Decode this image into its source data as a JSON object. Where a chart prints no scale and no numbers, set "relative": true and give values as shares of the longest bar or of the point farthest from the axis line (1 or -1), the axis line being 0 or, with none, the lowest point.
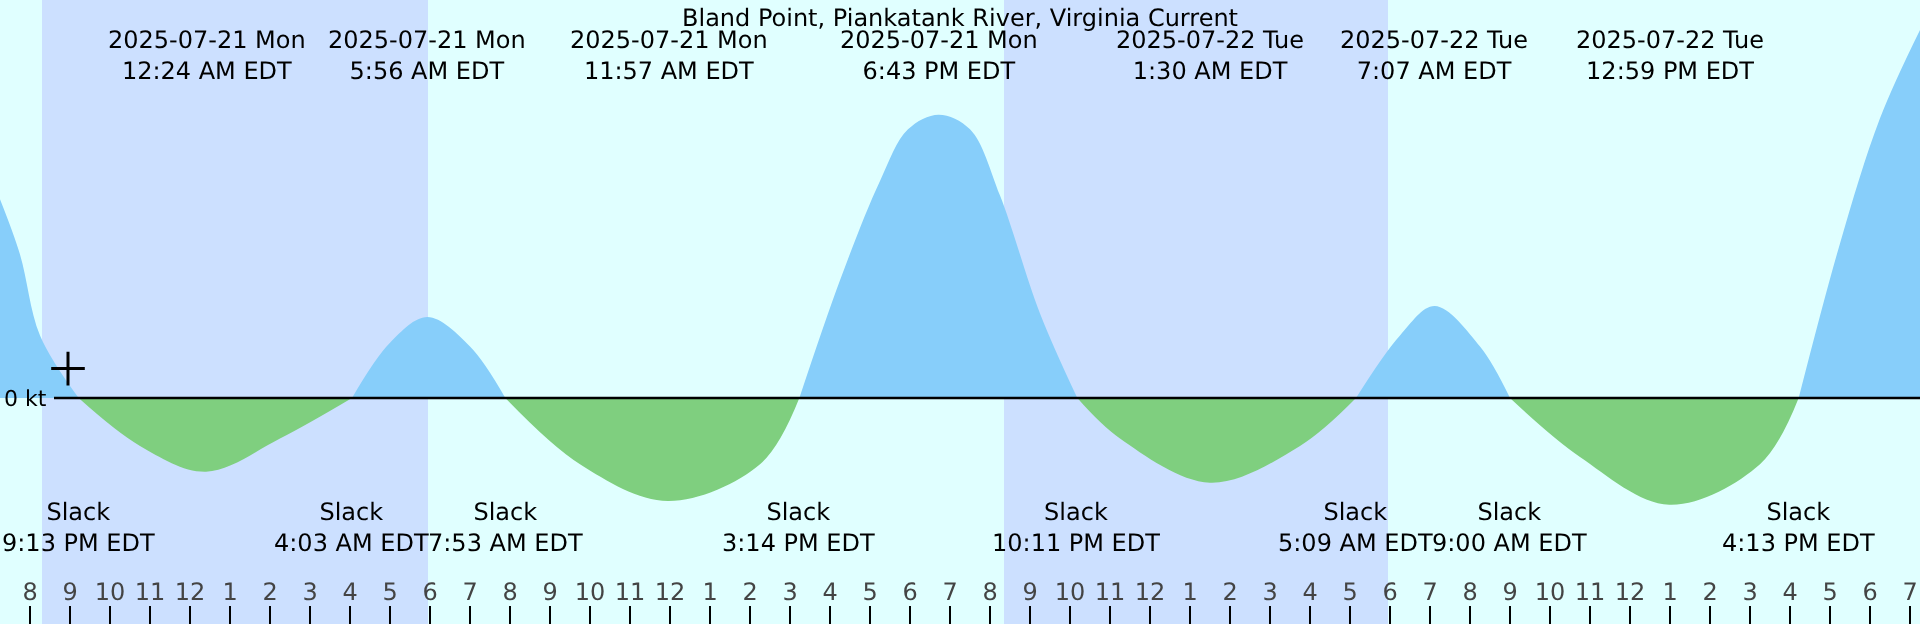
{
  "chart_data": {
    "type": "area",
    "relative": true,
    "title": "Bland Point, Piankatank River, Virginia Current",
    "x": [
      "2025-07-20T19:15",
      "2025-07-20T19:45",
      "2025-07-20T20:15",
      "2025-07-20T21:13",
      "2025-07-20T22:45",
      "2025-07-21T00:24",
      "2025-07-21T02:15",
      "2025-07-21T04:03",
      "2025-07-21T05:00",
      "2025-07-21T05:56",
      "2025-07-21T07:00",
      "2025-07-21T07:53",
      "2025-07-21T09:45",
      "2025-07-21T11:57",
      "2025-07-21T14:15",
      "2025-07-21T15:14",
      "2025-07-21T16:15",
      "2025-07-21T17:15",
      "2025-07-21T17:57",
      "2025-07-21T18:43",
      "2025-07-21T19:30",
      "2025-07-21T20:15",
      "2025-07-21T21:15",
      "2025-07-21T22:11",
      "2025-07-21T23:15",
      "2025-07-22T01:30",
      "2025-07-22T03:45",
      "2025-07-22T05:09",
      "2025-07-22T06:15",
      "2025-07-22T07:07",
      "2025-07-22T08:15",
      "2025-07-22T09:00",
      "2025-07-22T10:45",
      "2025-07-22T12:59",
      "2025-07-22T15:15",
      "2025-07-22T16:13",
      "2025-07-22T17:15",
      "2025-07-22T18:15",
      "2025-07-22T19:15"
    ],
    "series": [
      {
        "color": "#87cefa",
        "values": [
          0.54,
          0.39,
          0.17,
          0,
          null,
          null,
          null,
          0,
          0.15,
          0.22,
          0.14,
          0,
          null,
          null,
          null,
          0,
          0.32,
          0.59,
          0.73,
          0.77,
          0.73,
          0.55,
          0.23,
          0,
          null,
          null,
          null,
          0,
          0.17,
          0.25,
          0.14,
          0,
          null,
          null,
          null,
          0,
          0.42,
          0.76,
          1.0
        ]
      },
      {
        "color": "#7fcf7f",
        "values": [
          null,
          null,
          null,
          0,
          -0.13,
          -0.2,
          -0.11,
          0,
          null,
          null,
          null,
          0,
          -0.18,
          -0.28,
          -0.18,
          0,
          null,
          null,
          null,
          null,
          null,
          null,
          null,
          0,
          -0.11,
          -0.23,
          -0.13,
          0,
          null,
          null,
          null,
          0,
          -0.16,
          -0.29,
          -0.18,
          0,
          null,
          null,
          null
        ]
      },
      {
        "type": "scatter",
        "marker": "cross",
        "color": "#000000",
        "x": [
          "2025-07-20T20:57"
        ],
        "values": [
          0.08
        ]
      }
    ],
    "xlim": [
      "2025-07-20T19:15",
      "2025-07-22T19:15"
    ],
    "xticks": [
      {
        "value": "2025-07-20T20:00",
        "label": "8"
      },
      {
        "value": "2025-07-20T21:00",
        "label": "9"
      },
      {
        "value": "2025-07-20T22:00",
        "label": "10"
      },
      {
        "value": "2025-07-20T23:00",
        "label": "11"
      },
      {
        "value": "2025-07-21T00:00",
        "label": "12"
      },
      {
        "value": "2025-07-21T01:00",
        "label": "1"
      },
      {
        "value": "2025-07-21T02:00",
        "label": "2"
      },
      {
        "value": "2025-07-21T03:00",
        "label": "3"
      },
      {
        "value": "2025-07-21T04:00",
        "label": "4"
      },
      {
        "value": "2025-07-21T05:00",
        "label": "5"
      },
      {
        "value": "2025-07-21T06:00",
        "label": "6"
      },
      {
        "value": "2025-07-21T07:00",
        "label": "7"
      },
      {
        "value": "2025-07-21T08:00",
        "label": "8"
      },
      {
        "value": "2025-07-21T09:00",
        "label": "9"
      },
      {
        "value": "2025-07-21T10:00",
        "label": "10"
      },
      {
        "value": "2025-07-21T11:00",
        "label": "11"
      },
      {
        "value": "2025-07-21T12:00",
        "label": "12"
      },
      {
        "value": "2025-07-21T13:00",
        "label": "1"
      },
      {
        "value": "2025-07-21T14:00",
        "label": "2"
      },
      {
        "value": "2025-07-21T15:00",
        "label": "3"
      },
      {
        "value": "2025-07-21T16:00",
        "label": "4"
      },
      {
        "value": "2025-07-21T17:00",
        "label": "5"
      },
      {
        "value": "2025-07-21T18:00",
        "label": "6"
      },
      {
        "value": "2025-07-21T19:00",
        "label": "7"
      },
      {
        "value": "2025-07-21T20:00",
        "label": "8"
      },
      {
        "value": "2025-07-21T21:00",
        "label": "9"
      },
      {
        "value": "2025-07-21T22:00",
        "label": "10"
      },
      {
        "value": "2025-07-21T23:00",
        "label": "11"
      },
      {
        "value": "2025-07-22T00:00",
        "label": "12"
      },
      {
        "value": "2025-07-22T01:00",
        "label": "1"
      },
      {
        "value": "2025-07-22T02:00",
        "label": "2"
      },
      {
        "value": "2025-07-22T03:00",
        "label": "3"
      },
      {
        "value": "2025-07-22T04:00",
        "label": "4"
      },
      {
        "value": "2025-07-22T05:00",
        "label": "5"
      },
      {
        "value": "2025-07-22T06:00",
        "label": "6"
      },
      {
        "value": "2025-07-22T07:00",
        "label": "7"
      },
      {
        "value": "2025-07-22T08:00",
        "label": "8"
      },
      {
        "value": "2025-07-22T09:00",
        "label": "9"
      },
      {
        "value": "2025-07-22T10:00",
        "label": "10"
      },
      {
        "value": "2025-07-22T11:00",
        "label": "11"
      },
      {
        "value": "2025-07-22T12:00",
        "label": "12"
      },
      {
        "value": "2025-07-22T13:00",
        "label": "1"
      },
      {
        "value": "2025-07-22T14:00",
        "label": "2"
      },
      {
        "value": "2025-07-22T15:00",
        "label": "3"
      },
      {
        "value": "2025-07-22T16:00",
        "label": "4"
      },
      {
        "value": "2025-07-22T17:00",
        "label": "5"
      },
      {
        "value": "2025-07-22T18:00",
        "label": "6"
      },
      {
        "value": "2025-07-22T19:00",
        "label": "7"
      }
    ],
    "bands": [
      {
        "axis": "x",
        "from": "2025-07-20T20:18",
        "to": "2025-07-21T05:57",
        "color": "#cce0ff"
      },
      {
        "axis": "x",
        "from": "2025-07-21T20:21",
        "to": "2025-07-22T05:57",
        "color": "#cce0ff"
      }
    ],
    "annotations": [
      "0 kt",
      "2025-07-21 Mon\n12:24 AM EDT",
      "2025-07-21 Mon\n5:56 AM EDT",
      "2025-07-21 Mon\n11:57 AM EDT",
      "2025-07-21 Mon\n6:43 PM EDT",
      "2025-07-22 Tue\n1:30 AM EDT",
      "2025-07-22 Tue\n7:07 AM EDT",
      "2025-07-22 Tue\n12:59 PM EDT",
      "Slack\n9:13 PM EDT",
      "Slack\n4:03 AM EDT",
      "Slack\n7:53 AM EDT",
      "Slack\n3:14 PM EDT",
      "Slack\n10:11 PM EDT",
      "Slack\n5:09 AM EDT",
      "Slack\n9:00 AM EDT",
      "Slack\n4:13 PM EDT"
    ],
    "grid": false
  }
}
